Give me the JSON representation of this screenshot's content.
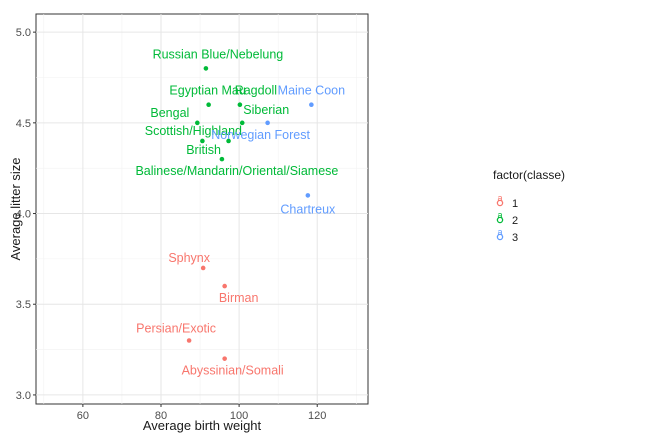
{
  "chart_data": {
    "type": "scatter",
    "title": "",
    "xlabel": "Average birth weight",
    "ylabel": "Average litter size",
    "xlim": [
      48,
      133
    ],
    "ylim": [
      2.95,
      5.1
    ],
    "xticks": [
      60,
      80,
      100,
      120
    ],
    "yticks": [
      3.0,
      3.5,
      4.0,
      4.5,
      5.0
    ],
    "xtick_labels": [
      "60",
      "80",
      "100",
      "120"
    ],
    "ytick_labels": [
      "3.0",
      "3.5",
      "4.0",
      "4.5",
      "5.0"
    ],
    "grid": true,
    "legend": {
      "title": "factor(classe)",
      "placement": "right",
      "entries": [
        {
          "label": "1",
          "color": "#f8766d"
        },
        {
          "label": "2",
          "color": "#00ba38"
        },
        {
          "label": "3",
          "color": "#619cff"
        }
      ]
    },
    "points": [
      {
        "label": "Russian Blue/Nebelung",
        "x": 91.5,
        "y": 4.8,
        "classe": "2"
      },
      {
        "label": "Egyptian Mau",
        "x": 92.2,
        "y": 4.6,
        "classe": "2"
      },
      {
        "label": "Ragdoll",
        "x": 100.2,
        "y": 4.6,
        "classe": "2"
      },
      {
        "label": "Bengal",
        "x": 89.3,
        "y": 4.5,
        "classe": "2"
      },
      {
        "label": "Siberian",
        "x": 100.8,
        "y": 4.5,
        "classe": "2"
      },
      {
        "label": "Scottish/Highland",
        "x": 90.6,
        "y": 4.4,
        "classe": "2"
      },
      {
        "label": "British",
        "x": 97.3,
        "y": 4.4,
        "classe": "2"
      },
      {
        "label": "Balinese/Mandarin/Oriental/Siamese",
        "x": 95.6,
        "y": 4.3,
        "classe": "2"
      },
      {
        "label": "Maine Coon",
        "x": 118.5,
        "y": 4.6,
        "classe": "3"
      },
      {
        "label": "Norwegian Forest",
        "x": 107.3,
        "y": 4.5,
        "classe": "3"
      },
      {
        "label": "Chartreux",
        "x": 117.6,
        "y": 4.1,
        "classe": "3"
      },
      {
        "label": "Sphynx",
        "x": 90.8,
        "y": 3.7,
        "classe": "1"
      },
      {
        "label": "Birman",
        "x": 96.3,
        "y": 3.6,
        "classe": "1"
      },
      {
        "label": "Persian/Exotic",
        "x": 87.2,
        "y": 3.3,
        "classe": "1"
      },
      {
        "label": "Abyssinian/Somali",
        "x": 96.3,
        "y": 3.2,
        "classe": "1"
      }
    ]
  }
}
